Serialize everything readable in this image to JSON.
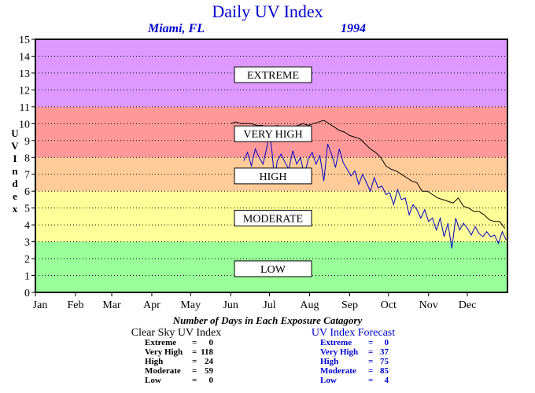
{
  "colors": {
    "extreme": "#dd99ff",
    "very_high": "#ff9999",
    "high": "#ffcc99",
    "moderate": "#ffff99",
    "low": "#99ff99",
    "title": "#0000cc",
    "forecast": "#0000cc",
    "clear_sky": "#000000"
  },
  "chart_data": {
    "type": "line",
    "title": "Daily UV Index",
    "location": "Miami, FL",
    "year": "1994",
    "ylabel": "UV Index",
    "ylim": [
      0,
      15
    ],
    "xlim": [
      1,
      366
    ],
    "yticks": [
      "0",
      "1",
      "2",
      "3",
      "4",
      "5",
      "6",
      "7",
      "8",
      "9",
      "10",
      "11",
      "12",
      "13",
      "14",
      "15"
    ],
    "month_labels": [
      "Jan",
      "Feb",
      "Mar",
      "Apr",
      "May",
      "Jun",
      "Jul",
      "Aug",
      "Sep",
      "Oct",
      "Nov",
      "Dec"
    ],
    "month_start_days": [
      1,
      32,
      60,
      91,
      121,
      152,
      182,
      213,
      244,
      274,
      305,
      335
    ],
    "grid": "dotted horizontal",
    "bands": [
      {
        "label": "LOW",
        "from": 0,
        "to": 3,
        "color": "#99ff99",
        "label_y": 1.4
      },
      {
        "label": "MODERATE",
        "from": 3,
        "to": 6,
        "color": "#ffff99",
        "label_y": 4.4
      },
      {
        "label": "HIGH",
        "from": 6,
        "to": 8,
        "color": "#ffcc99",
        "label_y": 6.9
      },
      {
        "label": "VERY HIGH",
        "from": 8,
        "to": 11,
        "color": "#ff9999",
        "label_y": 9.4
      },
      {
        "label": "EXTREME",
        "from": 11,
        "to": 15,
        "color": "#dd99ff",
        "label_y": 12.9
      }
    ],
    "series": [
      {
        "key": "clear_sky",
        "color": "#000000",
        "x": [
          152,
          156,
          160,
          164,
          168,
          172,
          176,
          180,
          184,
          188,
          192,
          196,
          200,
          204,
          208,
          212,
          216,
          220,
          224,
          228,
          232,
          236,
          240,
          244,
          248,
          252,
          256,
          260,
          264,
          268,
          272,
          276,
          280,
          284,
          288,
          292,
          296,
          300,
          304,
          308,
          312,
          316,
          320,
          324,
          328,
          332,
          336,
          340,
          344,
          348,
          352,
          356,
          360,
          364
        ],
        "y": [
          10.0,
          10.1,
          10.0,
          10.0,
          10.0,
          9.9,
          9.9,
          9.8,
          9.8,
          9.9,
          9.7,
          9.8,
          9.8,
          9.9,
          10.0,
          9.9,
          10.0,
          10.1,
          10.2,
          10.0,
          9.8,
          9.6,
          9.5,
          9.3,
          9.2,
          9.1,
          8.8,
          8.5,
          8.3,
          8.0,
          7.5,
          7.3,
          7.2,
          7.0,
          6.8,
          6.6,
          6.5,
          6.0,
          6.0,
          5.8,
          5.6,
          5.5,
          5.4,
          5.3,
          5.6,
          5.1,
          5.0,
          4.8,
          4.8,
          4.6,
          4.3,
          4.2,
          4.2,
          3.8
        ]
      },
      {
        "key": "forecast",
        "color": "#0000cc",
        "x": [
          162,
          165,
          168,
          171,
          174,
          177,
          180,
          182,
          184,
          186,
          188,
          191,
          194,
          197,
          200,
          203,
          206,
          209,
          212,
          215,
          218,
          221,
          224,
          227,
          230,
          233,
          236,
          239,
          242,
          245,
          248,
          251,
          254,
          257,
          260,
          263,
          266,
          269,
          272,
          275,
          278,
          281,
          284,
          287,
          290,
          293,
          296,
          299,
          302,
          305,
          308,
          311,
          314,
          317,
          320,
          323,
          326,
          329,
          332,
          335,
          338,
          341,
          344,
          347,
          350,
          353,
          356,
          359,
          362,
          365
        ],
        "y": [
          7.8,
          8.3,
          7.5,
          8.5,
          8.0,
          7.6,
          8.6,
          9.5,
          8.3,
          6.6,
          7.8,
          8.2,
          7.7,
          7.3,
          8.4,
          7.6,
          8.0,
          6.9,
          7.9,
          8.3,
          7.6,
          8.1,
          6.6,
          8.8,
          8.2,
          7.4,
          8.5,
          7.7,
          7.3,
          6.9,
          7.2,
          6.4,
          7.0,
          6.5,
          6.0,
          6.8,
          6.2,
          6.3,
          5.8,
          5.9,
          5.2,
          6.1,
          5.5,
          5.6,
          4.6,
          5.2,
          4.9,
          4.4,
          4.9,
          4.2,
          4.4,
          3.7,
          4.4,
          3.3,
          4.1,
          2.6,
          4.4,
          3.7,
          4.1,
          3.8,
          3.4,
          3.9,
          3.5,
          3.3,
          3.6,
          3.3,
          3.4,
          2.9,
          3.6,
          3.1
        ]
      }
    ]
  },
  "stats": {
    "heading": "Number of Days in Each Exposure Catagory",
    "clear_sky": {
      "title": "Clear Sky UV Index",
      "rows": [
        {
          "label": "Extreme",
          "eq": "=",
          "value": "0"
        },
        {
          "label": "Very High",
          "eq": "=",
          "value": "118"
        },
        {
          "label": "High",
          "eq": "=",
          "value": "24"
        },
        {
          "label": "Moderate",
          "eq": "=",
          "value": "59"
        },
        {
          "label": "Low",
          "eq": "=",
          "value": "0"
        }
      ]
    },
    "forecast": {
      "title": "UV Index Forecast",
      "rows": [
        {
          "label": "Extreme",
          "eq": "=",
          "value": "0"
        },
        {
          "label": "Very High",
          "eq": "=",
          "value": "37"
        },
        {
          "label": "High",
          "eq": "=",
          "value": "75"
        },
        {
          "label": "Moderate",
          "eq": "=",
          "value": "85"
        },
        {
          "label": "Low",
          "eq": "=",
          "value": "4"
        }
      ]
    }
  }
}
